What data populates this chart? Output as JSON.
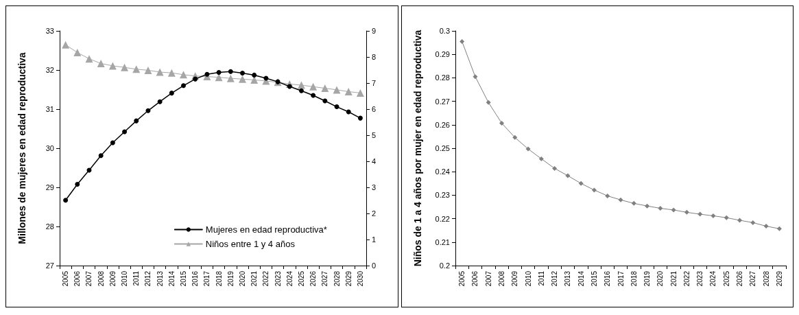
{
  "chart_data": [
    {
      "type": "line",
      "ylabel": "Millones de mujeres en edad reproductiva",
      "categories": [
        "2005",
        "2006",
        "2007",
        "2008",
        "2009",
        "2010",
        "2011",
        "2012",
        "2013",
        "2014",
        "2015",
        "2016",
        "2017",
        "2018",
        "2019",
        "2020",
        "2021",
        "2022",
        "2023",
        "2024",
        "2025",
        "2026",
        "2027",
        "2028",
        "2029",
        "2030"
      ],
      "series": [
        {
          "name": "Mujeres en edad reproductiva*",
          "color": "#000000",
          "marker": "circle",
          "values": [
            28.67,
            29.08,
            29.44,
            29.81,
            30.14,
            30.42,
            30.7,
            30.96,
            31.19,
            31.41,
            31.6,
            31.77,
            31.89,
            31.94,
            31.96,
            31.92,
            31.87,
            31.79,
            31.7,
            31.58,
            31.47,
            31.35,
            31.21,
            31.06,
            30.93,
            30.77
          ]
        },
        {
          "name": "Niños entre 1 y 4 años",
          "color": "#a6a6a6",
          "marker": "triangle",
          "axis": "y2",
          "values": [
            8.47,
            8.17,
            7.93,
            7.75,
            7.66,
            7.6,
            7.53,
            7.49,
            7.42,
            7.39,
            7.32,
            7.27,
            7.25,
            7.22,
            7.18,
            7.15,
            7.12,
            7.08,
            7.03,
            6.96,
            6.92,
            6.86,
            6.8,
            6.74,
            6.67,
            6.62
          ]
        }
      ],
      "ylim": [
        27,
        33
      ],
      "yticks": [
        27,
        28,
        29,
        30,
        31,
        32,
        33
      ],
      "y2lim": [
        0,
        9
      ],
      "y2ticks": [
        0,
        1,
        2,
        3,
        4,
        5,
        6,
        7,
        8,
        9
      ],
      "legend": "bottom",
      "grid": false
    },
    {
      "type": "line",
      "ylabel": "Niños de 1 a 4 años por mujer en edad reproductiva",
      "categories": [
        "2005",
        "2006",
        "2007",
        "2008",
        "2009",
        "2010",
        "2011",
        "2012",
        "2013",
        "2014",
        "2015",
        "2016",
        "2017",
        "2018",
        "2019",
        "2020",
        "2021",
        "2022",
        "2023",
        "2024",
        "2025",
        "2026",
        "2027",
        "2028",
        "2029"
      ],
      "series": [
        {
          "color": "#808080",
          "marker": "diamond",
          "values": [
            0.2955,
            0.2805,
            0.2695,
            0.2607,
            0.2546,
            0.2497,
            0.2455,
            0.2414,
            0.2383,
            0.235,
            0.2322,
            0.2297,
            0.228,
            0.2265,
            0.2254,
            0.2244,
            0.2237,
            0.2227,
            0.2219,
            0.2212,
            0.2204,
            0.2193,
            0.2183,
            0.2168,
            0.2157
          ]
        }
      ],
      "ylim": [
        0.2,
        0.3
      ],
      "yticks": [
        0.2,
        0.21,
        0.22,
        0.23,
        0.24,
        0.25,
        0.26,
        0.27,
        0.28,
        0.29,
        0.3
      ],
      "grid": false
    }
  ]
}
